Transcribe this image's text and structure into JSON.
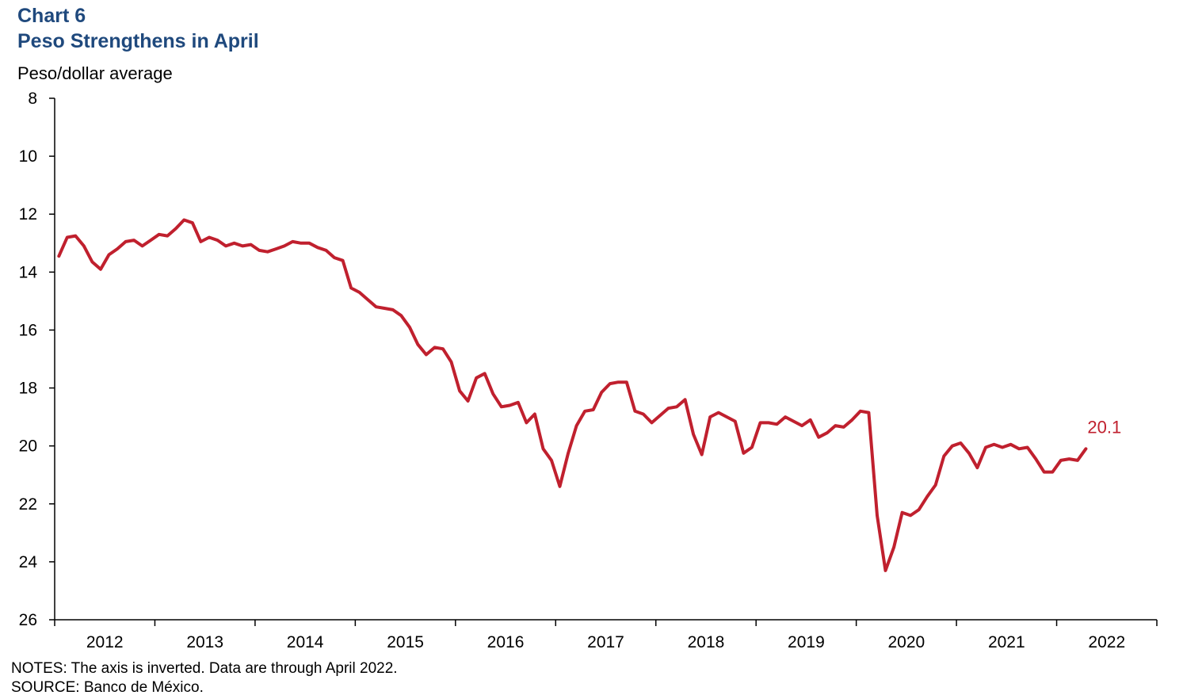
{
  "header": {
    "chart_number": "Chart 6",
    "title": "Peso Strengthens in April",
    "ylabel": "Peso/dollar average"
  },
  "footer": {
    "notes": "NOTES: The axis is inverted. Data are through April 2022.",
    "source": "SOURCE: Banco de México."
  },
  "colors": {
    "title": "#1f497d",
    "line": "#c0202e",
    "axis": "#000000"
  },
  "chart_data": {
    "type": "line",
    "title": "Peso Strengthens in April",
    "ylabel": "Peso/dollar average",
    "xlabel": "",
    "inverted_y": true,
    "ylim": [
      8,
      26
    ],
    "yticks": [
      8,
      10,
      12,
      14,
      16,
      18,
      20,
      22,
      24,
      26
    ],
    "xticks": [
      "2012",
      "2013",
      "2014",
      "2015",
      "2016",
      "2017",
      "2018",
      "2019",
      "2020",
      "2021",
      "2022"
    ],
    "x_start": "2012-01",
    "x_end": "2022-04",
    "frequency": "monthly",
    "end_label": "20.1",
    "grid": false,
    "series": [
      {
        "values": [
          13.45,
          12.8,
          12.75,
          13.1,
          13.65,
          13.9,
          13.4,
          13.2,
          12.95,
          12.9,
          13.1,
          12.9,
          12.7,
          12.75,
          12.5,
          12.2,
          12.3,
          12.95,
          12.8,
          12.9,
          13.1,
          13.0,
          13.1,
          13.05,
          13.25,
          13.3,
          13.2,
          13.1,
          12.95,
          13.0,
          13.0,
          13.15,
          13.25,
          13.5,
          13.6,
          14.55,
          14.7,
          14.95,
          15.2,
          15.25,
          15.3,
          15.5,
          15.9,
          16.5,
          16.85,
          16.6,
          16.65,
          17.1,
          18.1,
          18.45,
          17.65,
          17.5,
          18.2,
          18.65,
          18.6,
          18.5,
          19.2,
          18.9,
          20.1,
          20.5,
          21.4,
          20.25,
          19.3,
          18.8,
          18.75,
          18.15,
          17.85,
          17.8,
          17.8,
          18.8,
          18.9,
          19.2,
          18.95,
          18.7,
          18.65,
          18.4,
          19.6,
          20.3,
          19.0,
          18.85,
          19.0,
          19.15,
          20.25,
          20.05,
          19.2,
          19.2,
          19.25,
          19.0,
          19.15,
          19.3,
          19.1,
          19.7,
          19.55,
          19.3,
          19.35,
          19.1,
          18.8,
          18.85,
          22.4,
          24.3,
          23.5,
          22.3,
          22.4,
          22.2,
          21.75,
          21.35,
          20.35,
          20.0,
          19.9,
          20.25,
          20.75,
          20.05,
          19.95,
          20.05,
          19.95,
          20.1,
          20.05,
          20.45,
          20.9,
          20.9,
          20.5,
          20.45,
          20.5,
          20.1
        ]
      }
    ]
  }
}
